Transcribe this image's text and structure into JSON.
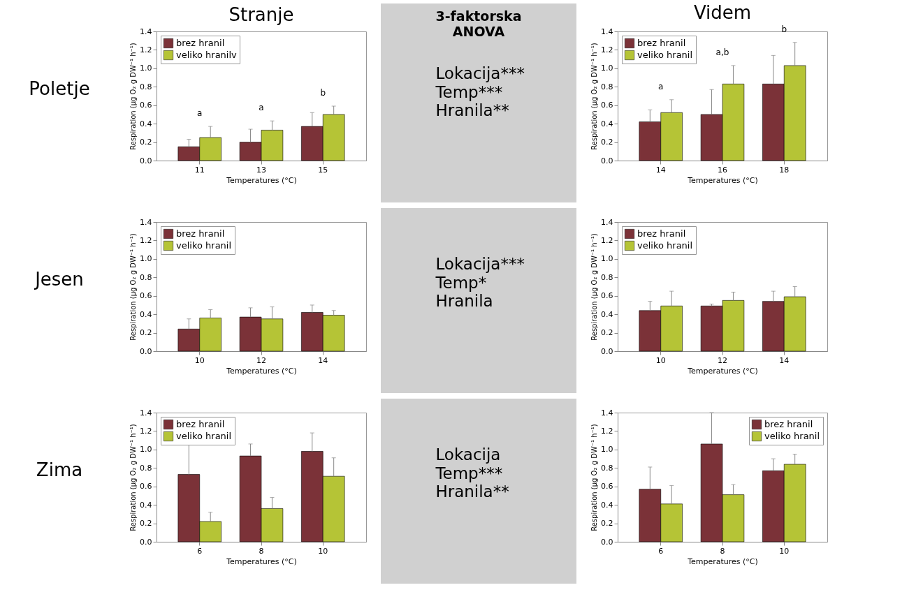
{
  "chart_data": [
    {
      "type": "other",
      "title": "Poletje"
    },
    {
      "type": "bar",
      "title": "Stranje",
      "xlabel": "Temperatures (°C)",
      "ylabel": "Respiration (µg O₂ g DW⁻¹ h⁻¹)",
      "categories": [
        "11",
        "13",
        "15"
      ],
      "ylim": [
        0,
        1.4
      ],
      "yticks": [
        {
          "value": 0,
          "label": "0.0"
        },
        {
          "value": 0.2,
          "label": "0.2"
        },
        {
          "value": 0.4,
          "label": "0.4"
        },
        {
          "value": 0.6,
          "label": "0.6"
        },
        {
          "value": 0.8,
          "label": "0.8"
        },
        {
          "value": 1,
          "label": "1.0"
        },
        {
          "value": 1.2,
          "label": "1.2"
        },
        {
          "value": 1.4,
          "label": "1.4"
        }
      ],
      "legend": "top left",
      "grid": false,
      "series": [
        {
          "name": "brez hranil",
          "color": "#7b3238",
          "values": [
            0.15,
            0.2,
            0.37
          ],
          "errors": [
            [
              0.15,
              0.23
            ],
            [
              0.2,
              0.34
            ],
            [
              0.37,
              0.52
            ]
          ]
        },
        {
          "name": "veliko hranilv",
          "color": "#b5c436",
          "values": [
            0.25,
            0.33,
            0.5
          ],
          "errors": [
            [
              0.25,
              0.37
            ],
            [
              0.33,
              0.43
            ],
            [
              0.5,
              0.59
            ]
          ]
        }
      ],
      "annotations": [
        "a",
        "a",
        "b"
      ]
    },
    {
      "type": "other",
      "title": "3-faktorska ANOVA",
      "annotations": [
        "Lokacija***",
        "Temp***",
        "Hranila**"
      ]
    },
    {
      "type": "bar",
      "title": "Videm",
      "xlabel": "Temperatures (°C)",
      "ylabel": "Respiration (µg O₂ g DW⁻¹ h⁻¹)",
      "categories": [
        "14",
        "16",
        "18"
      ],
      "ylim": [
        0,
        1.4
      ],
      "yticks": [
        {
          "value": 0,
          "label": "0.0"
        },
        {
          "value": 0.2,
          "label": "0.2"
        },
        {
          "value": 0.4,
          "label": "0.4"
        },
        {
          "value": 0.6,
          "label": "0.6"
        },
        {
          "value": 0.8,
          "label": "0.8"
        },
        {
          "value": 1,
          "label": "1.0"
        },
        {
          "value": 1.2,
          "label": "1.2"
        },
        {
          "value": 1.4,
          "label": "1.4"
        }
      ],
      "legend": "top left",
      "grid": false,
      "series": [
        {
          "name": "brez hranil",
          "color": "#7b3238",
          "values": [
            0.42,
            0.5,
            0.83
          ],
          "errors": [
            [
              0.42,
              0.55
            ],
            [
              0.5,
              0.77
            ],
            [
              0.83,
              1.14
            ]
          ]
        },
        {
          "name": "veliko hranil",
          "color": "#b5c436",
          "values": [
            0.52,
            0.83,
            1.03
          ],
          "errors": [
            [
              0.52,
              0.66
            ],
            [
              0.83,
              1.03
            ],
            [
              1.03,
              1.28
            ]
          ]
        }
      ],
      "annotations": [
        "a",
        "a,b",
        "b"
      ]
    },
    {
      "type": "other",
      "title": "Jesen"
    },
    {
      "type": "bar",
      "xlabel": "Temperatures (°C)",
      "ylabel": "Respiration (µg O₂ g DW⁻¹ h⁻¹)",
      "categories": [
        "10",
        "12",
        "14"
      ],
      "ylim": [
        0,
        1.4
      ],
      "yticks": [
        {
          "value": 0,
          "label": "0.0"
        },
        {
          "value": 0.2,
          "label": "0.2"
        },
        {
          "value": 0.4,
          "label": "0.4"
        },
        {
          "value": 0.6,
          "label": "0.6"
        },
        {
          "value": 0.8,
          "label": "0.8"
        },
        {
          "value": 1,
          "label": "1.0"
        },
        {
          "value": 1.2,
          "label": "1.2"
        },
        {
          "value": 1.4,
          "label": "1.4"
        }
      ],
      "legend": "top left",
      "grid": false,
      "series": [
        {
          "name": "brez hranil",
          "color": "#7b3238",
          "values": [
            0.24,
            0.37,
            0.42
          ],
          "errors": [
            [
              0.24,
              0.35
            ],
            [
              0.37,
              0.47
            ],
            [
              0.42,
              0.5
            ]
          ]
        },
        {
          "name": "veliko hranil",
          "color": "#b5c436",
          "values": [
            0.36,
            0.35,
            0.39
          ],
          "errors": [
            [
              0.36,
              0.45
            ],
            [
              0.35,
              0.48
            ],
            [
              0.39,
              0.44
            ]
          ]
        }
      ]
    },
    {
      "type": "other",
      "annotations": [
        "Lokacija***",
        "Temp*",
        "Hranila"
      ]
    },
    {
      "type": "bar",
      "xlabel": "Temperatures (°C)",
      "ylabel": "Respiration (µg O₂ g DW⁻¹ h⁻¹)",
      "categories": [
        "10",
        "12",
        "14"
      ],
      "ylim": [
        0,
        1.4
      ],
      "yticks": [
        {
          "value": 0,
          "label": "0.0"
        },
        {
          "value": 0.2,
          "label": "0.2"
        },
        {
          "value": 0.4,
          "label": "0.4"
        },
        {
          "value": 0.6,
          "label": "0.6"
        },
        {
          "value": 0.8,
          "label": "0.8"
        },
        {
          "value": 1,
          "label": "1.0"
        },
        {
          "value": 1.2,
          "label": "1.2"
        },
        {
          "value": 1.4,
          "label": "1.4"
        }
      ],
      "legend": "top left",
      "grid": false,
      "series": [
        {
          "name": "brez hranil",
          "color": "#7b3238",
          "values": [
            0.44,
            0.49,
            0.54
          ],
          "errors": [
            [
              0.44,
              0.54
            ],
            [
              0.49,
              0.51
            ],
            [
              0.54,
              0.65
            ]
          ]
        },
        {
          "name": "veliko hranil",
          "color": "#b5c436",
          "values": [
            0.49,
            0.55,
            0.59
          ],
          "errors": [
            [
              0.49,
              0.65
            ],
            [
              0.55,
              0.64
            ],
            [
              0.59,
              0.7
            ]
          ]
        }
      ]
    },
    {
      "type": "other",
      "title": "Zima"
    },
    {
      "type": "bar",
      "xlabel": "Temperatures (°C)",
      "ylabel": "Respiration (µg O₂ g DW⁻¹ h⁻¹)",
      "categories": [
        "6",
        "8",
        "10"
      ],
      "ylim": [
        0,
        1.4
      ],
      "yticks": [
        {
          "value": 0,
          "label": "0.0"
        },
        {
          "value": 0.2,
          "label": "0.2"
        },
        {
          "value": 0.4,
          "label": "0.4"
        },
        {
          "value": 0.6,
          "label": "0.6"
        },
        {
          "value": 0.8,
          "label": "0.8"
        },
        {
          "value": 1,
          "label": "1.0"
        },
        {
          "value": 1.2,
          "label": "1.2"
        },
        {
          "value": 1.4,
          "label": "1.4"
        }
      ],
      "legend": "top left",
      "grid": false,
      "series": [
        {
          "name": "brez hranil",
          "color": "#7b3238",
          "values": [
            0.73,
            0.93,
            0.98
          ],
          "errors": [
            [
              0.73,
              1.05
            ],
            [
              0.93,
              1.06
            ],
            [
              0.98,
              1.18
            ]
          ]
        },
        {
          "name": "veliko hranil",
          "color": "#b5c436",
          "values": [
            0.22,
            0.36,
            0.71
          ],
          "errors": [
            [
              0.22,
              0.32
            ],
            [
              0.36,
              0.48
            ],
            [
              0.71,
              0.91
            ]
          ]
        }
      ]
    },
    {
      "type": "other",
      "annotations": [
        "Lokacija",
        "Temp***",
        "Hranila**"
      ]
    },
    {
      "type": "bar",
      "xlabel": "Temperatures (°C)",
      "ylabel": "Respiration (µg O₂ g DW⁻¹ h⁻¹)",
      "categories": [
        "6",
        "8",
        "10"
      ],
      "ylim": [
        0,
        1.4
      ],
      "yticks": [
        {
          "value": 0,
          "label": "0.0"
        },
        {
          "value": 0.2,
          "label": "0.2"
        },
        {
          "value": 0.4,
          "label": "0.4"
        },
        {
          "value": 0.6,
          "label": "0.6"
        },
        {
          "value": 0.8,
          "label": "0.8"
        },
        {
          "value": 1,
          "label": "1.0"
        },
        {
          "value": 1.2,
          "label": "1.2"
        },
        {
          "value": 1.4,
          "label": "1.4"
        }
      ],
      "legend": "top right",
      "grid": false,
      "series": [
        {
          "name": "brez hranil",
          "color": "#7b3238",
          "values": [
            0.57,
            1.06,
            0.77
          ],
          "errors": [
            [
              0.57,
              0.81
            ],
            [
              1.06,
              1.4
            ],
            [
              0.77,
              0.9
            ]
          ]
        },
        {
          "name": "veliko hranil",
          "color": "#b5c436",
          "values": [
            0.41,
            0.51,
            0.84
          ],
          "errors": [
            [
              0.41,
              0.61
            ],
            [
              0.51,
              0.62
            ],
            [
              0.84,
              0.95
            ]
          ]
        }
      ]
    }
  ]
}
